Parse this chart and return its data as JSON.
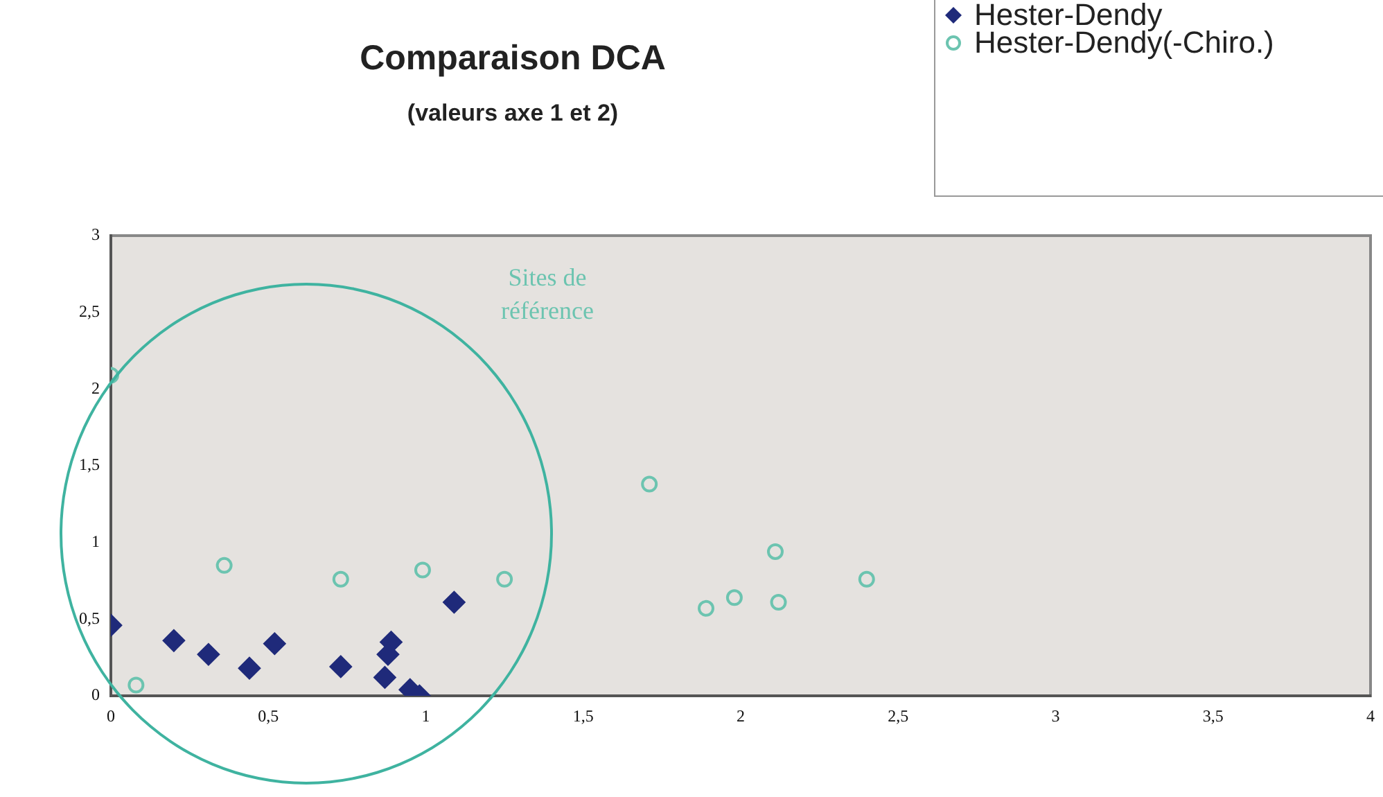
{
  "chart_data": {
    "type": "scatter",
    "title": "Comparaison DCA",
    "subtitle": "(valeurs axe 1 et 2)",
    "annotations": [
      "Sites de référence"
    ],
    "series": [
      {
        "name": "Hester-Dendy",
        "color": "#1f2a7a",
        "marker": "diamond",
        "x": [
          0.0,
          0.2,
          0.31,
          0.44,
          0.52,
          0.73,
          0.87,
          0.89,
          0.88,
          0.95,
          0.98,
          1.09
        ],
        "values": [
          0.46,
          0.36,
          0.27,
          0.18,
          0.34,
          0.19,
          0.12,
          0.35,
          0.27,
          0.04,
          0.0,
          0.61
        ]
      },
      {
        "name": "Hester-Dendy(-Chiro.)",
        "color": "#6cc4b0",
        "marker": "circle",
        "x": [
          0.0,
          0.08,
          0.36,
          0.73,
          0.99,
          1.25,
          1.71,
          1.89,
          1.98,
          2.11,
          2.12,
          2.4
        ],
        "values": [
          2.09,
          0.07,
          0.85,
          0.76,
          0.82,
          0.76,
          1.38,
          0.57,
          0.64,
          0.94,
          0.61,
          0.76
        ]
      }
    ],
    "xlim": [
      0,
      4
    ],
    "xticks": [
      0,
      {
        "value": 0.5,
        "label": "0,5"
      },
      1,
      {
        "value": 1.5,
        "label": "1,5"
      },
      2,
      {
        "value": 2.5,
        "label": "2,5"
      },
      3,
      {
        "value": 3.5,
        "label": "3,5"
      },
      4
    ],
    "ylim": [
      0,
      3
    ],
    "yticks": [
      0,
      {
        "value": 0.5,
        "label": "0,5"
      },
      1,
      {
        "value": 1.5,
        "label": "1,5"
      },
      2,
      {
        "value": 2.5,
        "label": "2,5"
      },
      3
    ],
    "grid": false,
    "legend": "top right"
  }
}
